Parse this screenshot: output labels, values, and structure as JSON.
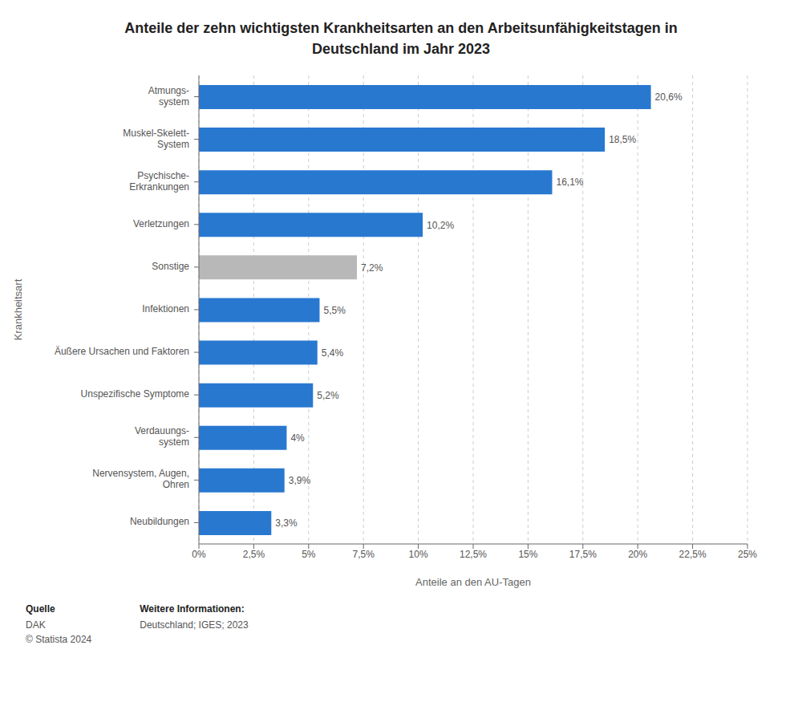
{
  "chart_data": {
    "type": "bar",
    "orientation": "horizontal",
    "title": "Anteile der zehn wichtigsten Krankheitsarten an den Arbeitsunfähigkeitstagen in\nDeutschland im Jahr 2023",
    "categories": [
      "Neubildungen",
      "Nervensystem, Augen,\nOhren",
      "Verdauungs-\nsystem",
      "Unspezifische Symptome",
      "Äußere Ursachen und Faktoren",
      "Infektionen",
      "Sonstige",
      "Verletzungen",
      "Psychische-\nErkrankungen",
      "Muskel-Skelett-\nSystem",
      "Atmungs-\nsystem"
    ],
    "values": [
      3.3,
      3.9,
      4.0,
      5.2,
      5.4,
      5.5,
      7.2,
      10.2,
      16.1,
      18.5,
      20.6
    ],
    "value_labels": [
      "3,3%",
      "3,9%",
      "4%",
      "5,2%",
      "5,4%",
      "5,5%",
      "7,2%",
      "10,2%",
      "16,1%",
      "18,5%",
      "20,6%"
    ],
    "data_labels": true,
    "colors": [
      "#2878d0",
      "#2878d0",
      "#2878d0",
      "#2878d0",
      "#2878d0",
      "#2878d0",
      "#b8b8b8",
      "#2878d0",
      "#2878d0",
      "#2878d0",
      "#2878d0"
    ],
    "xlabel": "Anteile an den AU-Tagen",
    "ylabel": "Krankheitsart",
    "xlim": [
      0,
      25
    ],
    "xticks": [
      {
        "value": 0,
        "label": "0%"
      },
      {
        "value": 2.5,
        "label": "2,5%"
      },
      {
        "value": 5,
        "label": "5%"
      },
      {
        "value": 7.5,
        "label": "7,5%"
      },
      {
        "value": 10,
        "label": "10%"
      },
      {
        "value": 12.5,
        "label": "12,5%"
      },
      {
        "value": 15,
        "label": "15%"
      },
      {
        "value": 17.5,
        "label": "17,5%"
      },
      {
        "value": 20,
        "label": "20%"
      },
      {
        "value": 22.5,
        "label": "22,5%"
      },
      {
        "value": 25,
        "label": "25%"
      }
    ],
    "grid": true,
    "annotations": [
      "Quelle",
      "DAK\n© Statista 2024",
      "Weitere Informationen:",
      "Deutschland; IGES; 2023"
    ]
  }
}
